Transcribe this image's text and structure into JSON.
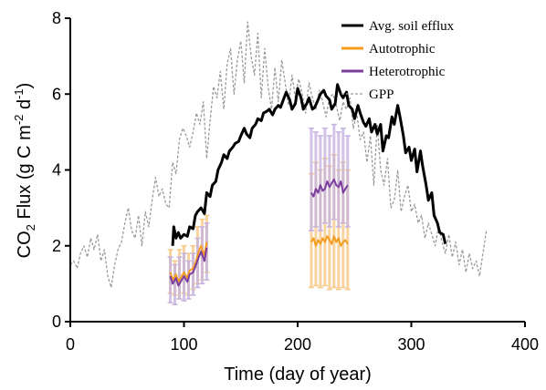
{
  "chart_data": {
    "type": "line",
    "xlabel": "Time (day of year)",
    "ylabel": {
      "prefix": "CO",
      "sub": "2",
      "middle": " Flux (g C m",
      "sup1": "-2",
      "between": " d",
      "sup2": "-1",
      "suffix": ")"
    },
    "xlim": [
      0,
      400
    ],
    "ylim": [
      0,
      8
    ],
    "xticks": [
      "0",
      "100",
      "200",
      "300",
      "400"
    ],
    "yticks": [
      "0",
      "2",
      "4",
      "6",
      "8"
    ],
    "grid": false,
    "legend_position": "top-right",
    "series": [
      {
        "name": "Avg. soil efflux",
        "color": "#000000",
        "x": [
          90,
          91,
          93,
          95,
          97,
          100,
          103,
          105,
          108,
          110,
          112,
          115,
          118,
          120,
          123,
          125,
          128,
          130,
          133,
          135,
          138,
          140,
          143,
          145,
          148,
          150,
          153,
          155,
          158,
          160,
          163,
          165,
          168,
          170,
          173,
          175,
          178,
          180,
          183,
          185,
          188,
          190,
          193,
          195,
          198,
          200,
          203,
          205,
          208,
          210,
          213,
          215,
          218,
          220,
          223,
          225,
          228,
          230,
          233,
          235,
          238,
          240,
          243,
          245,
          248,
          250,
          253,
          255,
          258,
          260,
          263,
          265,
          268,
          270,
          273,
          275,
          278,
          280,
          283,
          285,
          288,
          290,
          293,
          295,
          298,
          300,
          303,
          305,
          308,
          310,
          313,
          315,
          318,
          320,
          323,
          325,
          328,
          330
        ],
        "y": [
          2.0,
          2.5,
          2.2,
          2.35,
          2.2,
          2.3,
          2.25,
          2.5,
          2.45,
          2.8,
          2.9,
          3.0,
          2.85,
          3.4,
          3.3,
          3.6,
          3.7,
          4.0,
          4.2,
          4.4,
          4.3,
          4.5,
          4.6,
          4.7,
          4.75,
          4.9,
          5.1,
          4.95,
          4.85,
          5.1,
          5.2,
          5.35,
          5.3,
          5.5,
          5.55,
          5.6,
          5.45,
          5.6,
          5.7,
          5.65,
          5.9,
          6.05,
          5.85,
          5.6,
          5.75,
          6.15,
          5.9,
          5.6,
          5.75,
          5.9,
          5.6,
          5.65,
          5.85,
          6.0,
          6.1,
          5.95,
          5.85,
          5.6,
          5.75,
          6.25,
          6.0,
          5.9,
          6.05,
          5.7,
          5.6,
          5.35,
          5.7,
          5.5,
          5.25,
          5.15,
          5.35,
          5.0,
          5.2,
          4.95,
          5.2,
          4.5,
          4.9,
          4.85,
          5.4,
          5.2,
          5.7,
          5.4,
          4.9,
          4.45,
          4.6,
          4.25,
          4.55,
          3.95,
          4.5,
          4.1,
          3.6,
          3.2,
          3.4,
          2.8,
          2.6,
          2.35,
          2.3,
          2.05
        ],
        "style": "solid",
        "width": 3
      },
      {
        "name": "Autotrophic",
        "color": "#f39c1f",
        "x": [
          88,
          90,
          93,
          95,
          98,
          100,
          103,
          105,
          108,
          110,
          113,
          115,
          118,
          120,
          212,
          214,
          216,
          218,
          220,
          222,
          224,
          226,
          228,
          230,
          232,
          234,
          236,
          238,
          240,
          242,
          244
        ],
        "y": [
          1.3,
          1.1,
          1.25,
          1.05,
          1.2,
          1.3,
          1.15,
          1.35,
          1.4,
          1.55,
          1.85,
          2.0,
          1.75,
          2.1,
          2.1,
          2.2,
          2.0,
          2.15,
          2.05,
          2.2,
          2.1,
          2.25,
          2.15,
          2.05,
          2.25,
          2.1,
          2.2,
          2.0,
          2.1,
          2.15,
          2.05
        ],
        "style": "solid",
        "width": 2
      },
      {
        "name": "Heterotrophic",
        "color": "#7b3e9e",
        "x": [
          88,
          90,
          93,
          95,
          98,
          100,
          103,
          105,
          108,
          110,
          113,
          115,
          118,
          120,
          212,
          214,
          216,
          218,
          220,
          222,
          224,
          226,
          228,
          230,
          232,
          234,
          236,
          238,
          240,
          242,
          244
        ],
        "y": [
          1.2,
          1.0,
          1.15,
          0.95,
          1.1,
          1.2,
          1.05,
          1.25,
          1.3,
          1.45,
          1.7,
          1.85,
          1.6,
          1.95,
          3.4,
          3.3,
          3.5,
          3.4,
          3.6,
          3.45,
          3.5,
          3.7,
          3.55,
          3.65,
          3.75,
          3.6,
          3.55,
          3.7,
          3.4,
          3.5,
          3.6
        ],
        "style": "solid",
        "width": 2
      },
      {
        "name": "GPP",
        "color": "#9a9a9a",
        "x": [
          0,
          3,
          6,
          9,
          12,
          15,
          18,
          21,
          24,
          27,
          30,
          33,
          36,
          39,
          42,
          45,
          48,
          51,
          54,
          57,
          60,
          63,
          66,
          69,
          72,
          75,
          78,
          81,
          84,
          87,
          90,
          93,
          96,
          99,
          102,
          105,
          108,
          111,
          114,
          117,
          120,
          123,
          126,
          129,
          132,
          135,
          138,
          141,
          144,
          147,
          150,
          153,
          156,
          159,
          162,
          165,
          168,
          171,
          174,
          177,
          180,
          183,
          186,
          189,
          192,
          195,
          198,
          201,
          204,
          207,
          210,
          213,
          216,
          219,
          222,
          225,
          228,
          231,
          234,
          237,
          240,
          243,
          246,
          249,
          252,
          255,
          258,
          261,
          264,
          267,
          270,
          273,
          276,
          279,
          282,
          285,
          288,
          291,
          294,
          297,
          300,
          303,
          306,
          309,
          312,
          315,
          318,
          321,
          324,
          327,
          330,
          333,
          336,
          339,
          342,
          345,
          348,
          351,
          354,
          357,
          360,
          363,
          366
        ],
        "y": [
          1.5,
          1.6,
          1.4,
          1.8,
          2.0,
          1.7,
          2.2,
          1.9,
          2.3,
          1.6,
          1.9,
          1.2,
          0.9,
          1.5,
          1.9,
          2.1,
          2.6,
          3.0,
          2.4,
          2.2,
          2.8,
          2.0,
          2.9,
          2.5,
          3.2,
          3.8,
          3.3,
          3.5,
          3.1,
          3.0,
          4.2,
          3.9,
          4.8,
          5.1,
          4.9,
          4.6,
          5.0,
          5.5,
          5.2,
          5.8,
          4.3,
          5.3,
          6.2,
          5.9,
          6.6,
          5.6,
          6.8,
          7.2,
          6.0,
          6.9,
          7.4,
          6.3,
          7.9,
          7.0,
          6.5,
          7.6,
          5.9,
          7.2,
          6.2,
          5.6,
          6.7,
          5.8,
          6.9,
          6.3,
          5.7,
          6.5,
          5.9,
          6.4,
          6.0,
          5.5,
          6.3,
          5.9,
          5.6,
          6.1,
          5.8,
          5.4,
          5.9,
          6.0,
          5.7,
          5.3,
          5.8,
          5.6,
          5.9,
          5.1,
          5.5,
          4.8,
          5.0,
          4.2,
          4.9,
          3.6,
          5.2,
          4.0,
          3.6,
          4.3,
          3.0,
          3.2,
          4.0,
          2.9,
          3.3,
          3.6,
          2.9,
          3.1,
          2.6,
          2.8,
          2.2,
          2.6,
          2.3,
          2.0,
          2.5,
          2.1,
          1.8,
          2.3,
          1.7,
          2.1,
          1.5,
          1.9,
          1.3,
          1.8,
          1.4,
          1.6,
          1.2,
          1.8,
          2.4
        ],
        "style": "dashed",
        "width": 1.3
      }
    ],
    "error_bands": [
      {
        "name": "Autotrophic",
        "color": "#f7c886",
        "x": [
          88,
          92,
          96,
          100,
          104,
          108,
          112,
          116,
          120,
          212,
          216,
          220,
          224,
          228,
          232,
          236,
          240,
          244
        ],
        "low": [
          0.75,
          0.7,
          0.6,
          0.75,
          0.7,
          0.85,
          1.0,
          1.1,
          1.3,
          0.9,
          0.95,
          0.9,
          0.95,
          0.85,
          0.9,
          0.85,
          0.9,
          0.85
        ],
        "high": [
          1.9,
          1.6,
          1.9,
          2.0,
          1.8,
          2.0,
          2.5,
          2.7,
          2.8,
          3.9,
          4.2,
          4.0,
          4.3,
          4.1,
          4.4,
          4.0,
          4.2,
          4.0
        ]
      },
      {
        "name": "Heterotrophic",
        "color": "#c5b3e0",
        "x": [
          88,
          92,
          96,
          100,
          104,
          108,
          112,
          116,
          120,
          212,
          216,
          220,
          224,
          228,
          232,
          236,
          240,
          244
        ],
        "low": [
          0.5,
          0.45,
          0.6,
          0.55,
          0.6,
          0.7,
          0.9,
          1.0,
          1.1,
          2.4,
          2.5,
          2.4,
          2.6,
          2.5,
          2.7,
          2.5,
          2.6,
          2.5
        ],
        "high": [
          1.7,
          1.5,
          1.7,
          1.8,
          1.6,
          1.8,
          2.2,
          2.5,
          2.6,
          5.1,
          5.0,
          4.9,
          5.1,
          4.9,
          5.2,
          5.0,
          5.1,
          4.9
        ]
      }
    ]
  }
}
